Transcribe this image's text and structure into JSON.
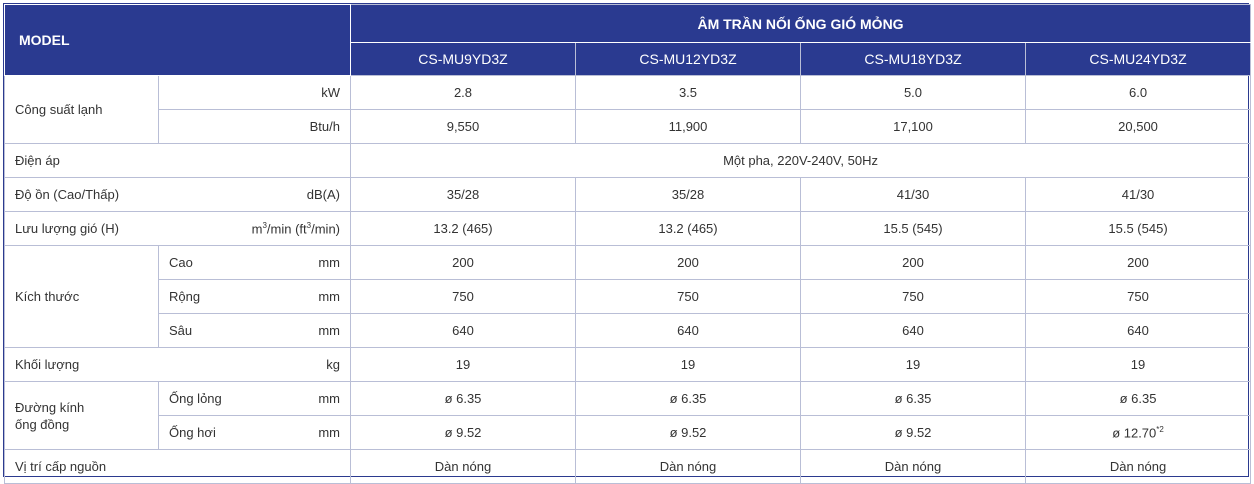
{
  "header": {
    "model_label": "MODEL",
    "group_title": "ÂM TRẦN NỐI ỐNG GIÓ MỎNG",
    "models": [
      "CS-MU9YD3Z",
      "CS-MU12YD3Z",
      "CS-MU18YD3Z",
      "CS-MU24YD3Z"
    ]
  },
  "rows": {
    "cooling": {
      "label": "Công suất lạnh",
      "kw": {
        "unit": "kW",
        "values": [
          "2.8",
          "3.5",
          "5.0",
          "6.0"
        ]
      },
      "btu": {
        "unit": "Btu/h",
        "values": [
          "9,550",
          "11,900",
          "17,100",
          "20,500"
        ]
      }
    },
    "voltage": {
      "label": "Điện áp",
      "value": "Một pha, 220V-240V, 50Hz"
    },
    "noise": {
      "label": "Độ ồn (Cao/Thấp)",
      "unit": "dB(A)",
      "values": [
        "35/28",
        "35/28",
        "41/30",
        "41/30"
      ]
    },
    "airflow": {
      "label": "Lưu lượng gió (H)",
      "unit_a": "m",
      "unit_b": "/min (ft",
      "unit_c": "/min)",
      "sup": "3",
      "values": [
        "13.2 (465)",
        "13.2 (465)",
        "15.5 (545)",
        "15.5 (545)"
      ]
    },
    "dimensions": {
      "label": "Kích thước",
      "height": {
        "sub": "Cao",
        "unit": "mm",
        "values": [
          "200",
          "200",
          "200",
          "200"
        ]
      },
      "width": {
        "sub": "Rộng",
        "unit": "mm",
        "values": [
          "750",
          "750",
          "750",
          "750"
        ]
      },
      "depth": {
        "sub": "Sâu",
        "unit": "mm",
        "values": [
          "640",
          "640",
          "640",
          "640"
        ]
      }
    },
    "weight": {
      "label": "Khối lượng",
      "unit": "kg",
      "values": [
        "19",
        "19",
        "19",
        "19"
      ]
    },
    "pipe": {
      "label_line1": "Đường kính",
      "label_line2": "ống đồng",
      "liquid": {
        "sub": "Ống lỏng",
        "unit": "mm",
        "values": [
          "ø 6.35",
          "ø 6.35",
          "ø 6.35",
          "ø 6.35"
        ]
      },
      "gas": {
        "sub": "Ống hơi",
        "unit": "mm",
        "values": [
          "ø 9.52",
          "ø 9.52",
          "ø 9.52",
          "ø 12.70"
        ],
        "note": "*2"
      }
    },
    "power": {
      "label": "Vị trí cấp nguồn",
      "values": [
        "Dàn nóng",
        "Dàn nóng",
        "Dàn nóng",
        "Dàn nóng"
      ]
    }
  }
}
